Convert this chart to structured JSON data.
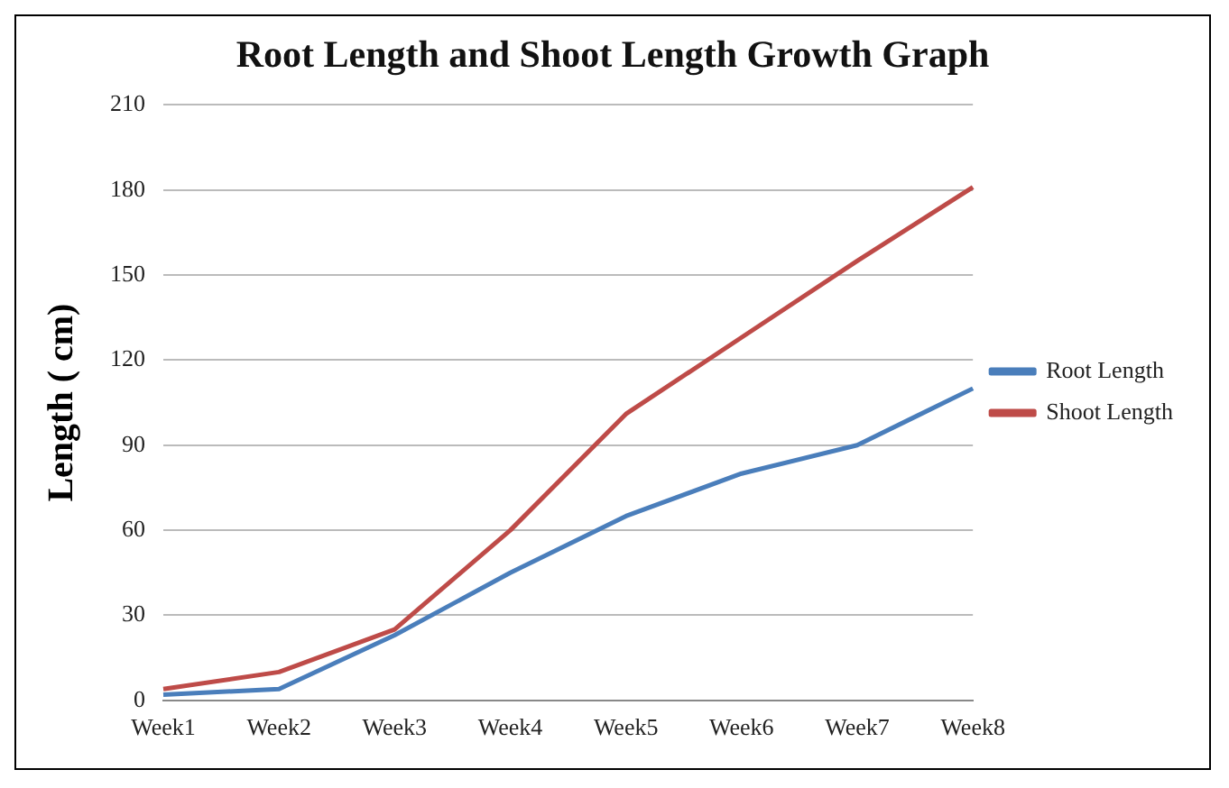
{
  "chart_data": {
    "type": "line",
    "title": "Root Length and Shoot Length Growth Graph",
    "ylabel": "Length ( cm)",
    "categories": [
      "Week1",
      "Week2",
      "Week3",
      "Week4",
      "Week5",
      "Week6",
      "Week7",
      "Week8"
    ],
    "series": [
      {
        "name": "Root Length",
        "color": "#4a7ebb",
        "values": [
          2,
          4,
          23,
          45,
          65,
          80,
          90,
          110
        ]
      },
      {
        "name": "Shoot Length",
        "color": "#be4b48",
        "values": [
          4,
          10,
          25,
          60,
          101,
          128,
          155,
          181
        ]
      }
    ],
    "ylim": [
      0,
      210
    ],
    "yticks": [
      0,
      30,
      60,
      90,
      120,
      150,
      180,
      210
    ],
    "grid": "y",
    "legend": "right",
    "marker": "none",
    "line_style": "solid"
  }
}
